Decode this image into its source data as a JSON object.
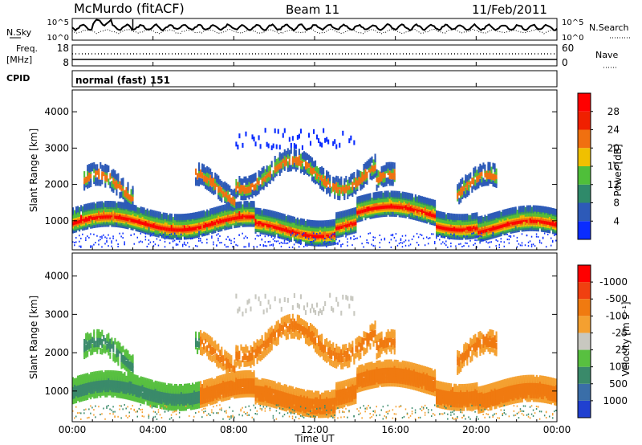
{
  "header": {
    "station": "McMurdo (fitACF)",
    "beam": "Beam 11",
    "date": "11/Feb/2011"
  },
  "top_panels": {
    "nsky_label": "N.Sky",
    "nsky_ticks": [
      "10^5",
      "10^0"
    ],
    "nsearch_label": "N.Search",
    "nsearch_ticks": [
      "10^5",
      "10^0"
    ],
    "freq_label": "Freq.",
    "freq_unit": "[MHz]",
    "freq_ticks": [
      "18",
      "8"
    ],
    "nave_label": "Nave",
    "nave_ticks": [
      "60",
      "0"
    ],
    "cpid_label": "CPID",
    "cpid_value": "normal (fast) 151"
  },
  "chart_data": [
    {
      "type": "heatmap",
      "name": "power-panel",
      "ylabel": "Slant Range [km]",
      "xlabel": "",
      "y_ticks": [
        1000,
        2000,
        3000,
        4000
      ],
      "ylim": [
        200,
        4600
      ],
      "x_ticks_hours": [
        0,
        4,
        8,
        12,
        16,
        20,
        24
      ],
      "colorbar": {
        "label": "Power [dB]",
        "tick_labels": [
          "4",
          "8",
          "12",
          "16",
          "20",
          "24",
          "28"
        ],
        "colors": [
          "#0a2cff",
          "#2d5ab8",
          "#2f8a6a",
          "#4fbf3a",
          "#f0c000",
          "#f07010",
          "#f02000",
          "#ff0000"
        ]
      }
    },
    {
      "type": "heatmap",
      "name": "velocity-panel",
      "ylabel": "Slant Range [km]",
      "xlabel": "Time UT",
      "y_ticks": [
        1000,
        2000,
        3000,
        4000
      ],
      "ylim": [
        200,
        4600
      ],
      "x_ticks_hours": [
        0,
        4,
        8,
        12,
        16,
        20,
        24
      ],
      "x_tick_labels": [
        "00:00",
        "04:00",
        "08:00",
        "12:00",
        "16:00",
        "20:00",
        "00:00"
      ],
      "colorbar": {
        "label": "Velocity [m s⁻¹]",
        "tick_labels": [
          "1000",
          "500",
          "100",
          "25",
          "-25",
          "-100",
          "-500",
          "-1000"
        ],
        "colors": [
          "#2040d0",
          "#3a6ea8",
          "#3a8a6a",
          "#58c040",
          "#c8c8c0",
          "#f4a030",
          "#f07a10",
          "#f04010",
          "#ff0000"
        ]
      }
    }
  ]
}
